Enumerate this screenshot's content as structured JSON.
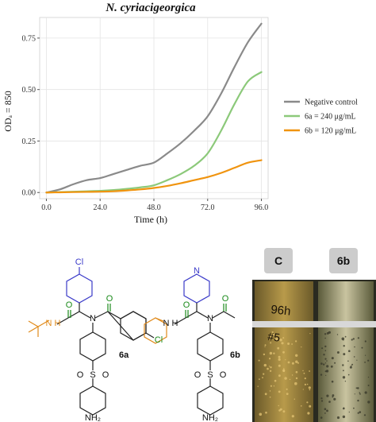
{
  "chart_data": {
    "type": "line",
    "title": "N. cyriacigeorgica",
    "xlabel": "Time (h)",
    "ylabel": "ODₐ = 850",
    "xlim": [
      -3,
      99
    ],
    "ylim": [
      -0.03,
      0.85
    ],
    "xticks": [
      0,
      24,
      48,
      72,
      96
    ],
    "xtick_labels": [
      "0.0",
      "24.0",
      "48.0",
      "72.0",
      "96.0"
    ],
    "yticks": [
      0,
      0.25,
      0.5,
      0.75
    ],
    "ytick_labels": [
      "0.00",
      "0.25",
      "0.50",
      "0.75"
    ],
    "grid": true,
    "legend_position": "right",
    "series": [
      {
        "name": "Negative control",
        "color": "#8a8a8a",
        "x": [
          0,
          6,
          12,
          18,
          24,
          30,
          36,
          42,
          48,
          54,
          60,
          66,
          72,
          78,
          84,
          90,
          96
        ],
        "y": [
          0.0,
          0.015,
          0.04,
          0.06,
          0.07,
          0.09,
          0.11,
          0.13,
          0.145,
          0.19,
          0.24,
          0.3,
          0.37,
          0.48,
          0.61,
          0.73,
          0.82
        ]
      },
      {
        "name": "6a = 240 μg/mL",
        "color": "#8cc97a",
        "x": [
          0,
          6,
          12,
          18,
          24,
          30,
          36,
          42,
          48,
          54,
          60,
          66,
          72,
          78,
          84,
          90,
          96
        ],
        "y": [
          0.0,
          0.002,
          0.004,
          0.006,
          0.008,
          0.012,
          0.018,
          0.025,
          0.035,
          0.06,
          0.09,
          0.13,
          0.19,
          0.3,
          0.43,
          0.54,
          0.585
        ]
      },
      {
        "name": "6b = 120 μg/mL",
        "color": "#f0940f",
        "x": [
          0,
          6,
          12,
          18,
          24,
          30,
          36,
          42,
          48,
          54,
          60,
          66,
          72,
          78,
          84,
          90,
          96
        ],
        "y": [
          0.0,
          0.001,
          0.002,
          0.003,
          0.004,
          0.006,
          0.01,
          0.015,
          0.022,
          0.032,
          0.045,
          0.06,
          0.075,
          0.095,
          0.12,
          0.145,
          0.157
        ]
      }
    ]
  },
  "structures": {
    "a": {
      "label": "6a",
      "cl_top": "Cl",
      "cl_side": "Cl",
      "nh": "N\nH",
      "n": "N",
      "o1": "O",
      "o2": "O",
      "s": "S",
      "o3": "O",
      "o4": "O",
      "nh2": "NH₂"
    },
    "b": {
      "label": "6b",
      "n_ring": "N",
      "nh": "N\nH",
      "n": "N",
      "o1": "O",
      "o2": "O",
      "s": "S",
      "o3": "O",
      "o4": "O",
      "nh2": "NH₂"
    }
  },
  "photo": {
    "tag_c": "C",
    "tag_6b": "6b",
    "tube_text_1": "96h",
    "tube_text_2": "#5"
  },
  "colors": {
    "blue": "#3b3bc9",
    "green": "#1a8a1a",
    "orange": "#e08a1a",
    "grid": "#e4e4e4"
  }
}
